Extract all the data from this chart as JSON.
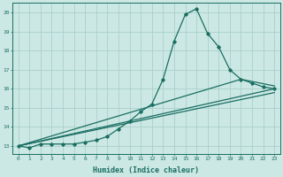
{
  "xlabel": "Humidex (Indice chaleur)",
  "bg_color": "#cce8e4",
  "grid_color": "#aacfcc",
  "line_color": "#1a6e62",
  "xlim": [
    -0.5,
    23.5
  ],
  "ylim": [
    12.6,
    20.5
  ],
  "xticks": [
    0,
    1,
    2,
    3,
    4,
    5,
    6,
    7,
    8,
    9,
    10,
    11,
    12,
    13,
    14,
    15,
    16,
    17,
    18,
    19,
    20,
    21,
    22,
    23
  ],
  "yticks": [
    13,
    14,
    15,
    16,
    17,
    18,
    19,
    20
  ],
  "line1_x": [
    0,
    1,
    2,
    3,
    4,
    5,
    6,
    7,
    8,
    9,
    10,
    11,
    12,
    13,
    14,
    15,
    16,
    17,
    18,
    19,
    20,
    21,
    22,
    23
  ],
  "line1_y": [
    13.0,
    12.9,
    13.1,
    13.1,
    13.1,
    13.1,
    13.2,
    13.3,
    13.5,
    13.9,
    14.3,
    14.8,
    15.2,
    16.5,
    18.5,
    19.9,
    20.2,
    18.9,
    18.2,
    17.0,
    16.5,
    16.3,
    16.1,
    16.0
  ],
  "line2_x": [
    0,
    23
  ],
  "line2_y": [
    13.0,
    16.0
  ],
  "line3_x": [
    0,
    20,
    23
  ],
  "line3_y": [
    13.0,
    16.5,
    16.15
  ],
  "line4_x": [
    0,
    23
  ],
  "line4_y": [
    13.0,
    15.8
  ]
}
